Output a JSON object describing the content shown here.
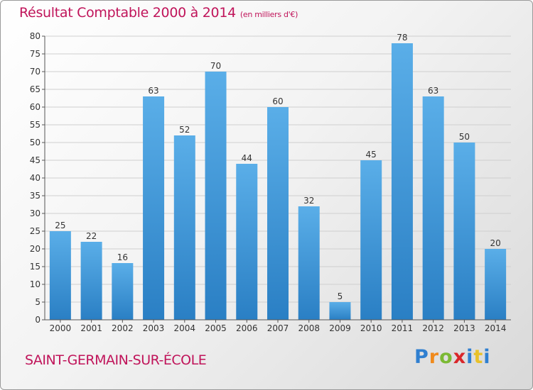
{
  "title": "Résultat Comptable 2000 à 2014",
  "unit_note": "(en milliers d'€)",
  "commune": "SAINT-GERMAIN-SUR-ÉCOLE",
  "logo": "Proxiti",
  "colors": {
    "title": "#c0145a",
    "bar_light": "#5aaee8",
    "bar_dark": "#2a7fc4",
    "grid": "#cfcfcf"
  },
  "chart_data": {
    "type": "bar",
    "categories": [
      "2000",
      "2001",
      "2002",
      "2003",
      "2004",
      "2005",
      "2006",
      "2007",
      "2008",
      "2009",
      "2010",
      "2011",
      "2012",
      "2013",
      "2014"
    ],
    "values": [
      25,
      22,
      16,
      63,
      52,
      70,
      44,
      60,
      32,
      5,
      45,
      78,
      63,
      50,
      20
    ],
    "ylim": [
      0,
      80
    ],
    "yticks": [
      0,
      5,
      10,
      15,
      20,
      25,
      30,
      35,
      40,
      45,
      50,
      55,
      60,
      65,
      70,
      75,
      80
    ],
    "grid": true,
    "data_labels": true
  }
}
